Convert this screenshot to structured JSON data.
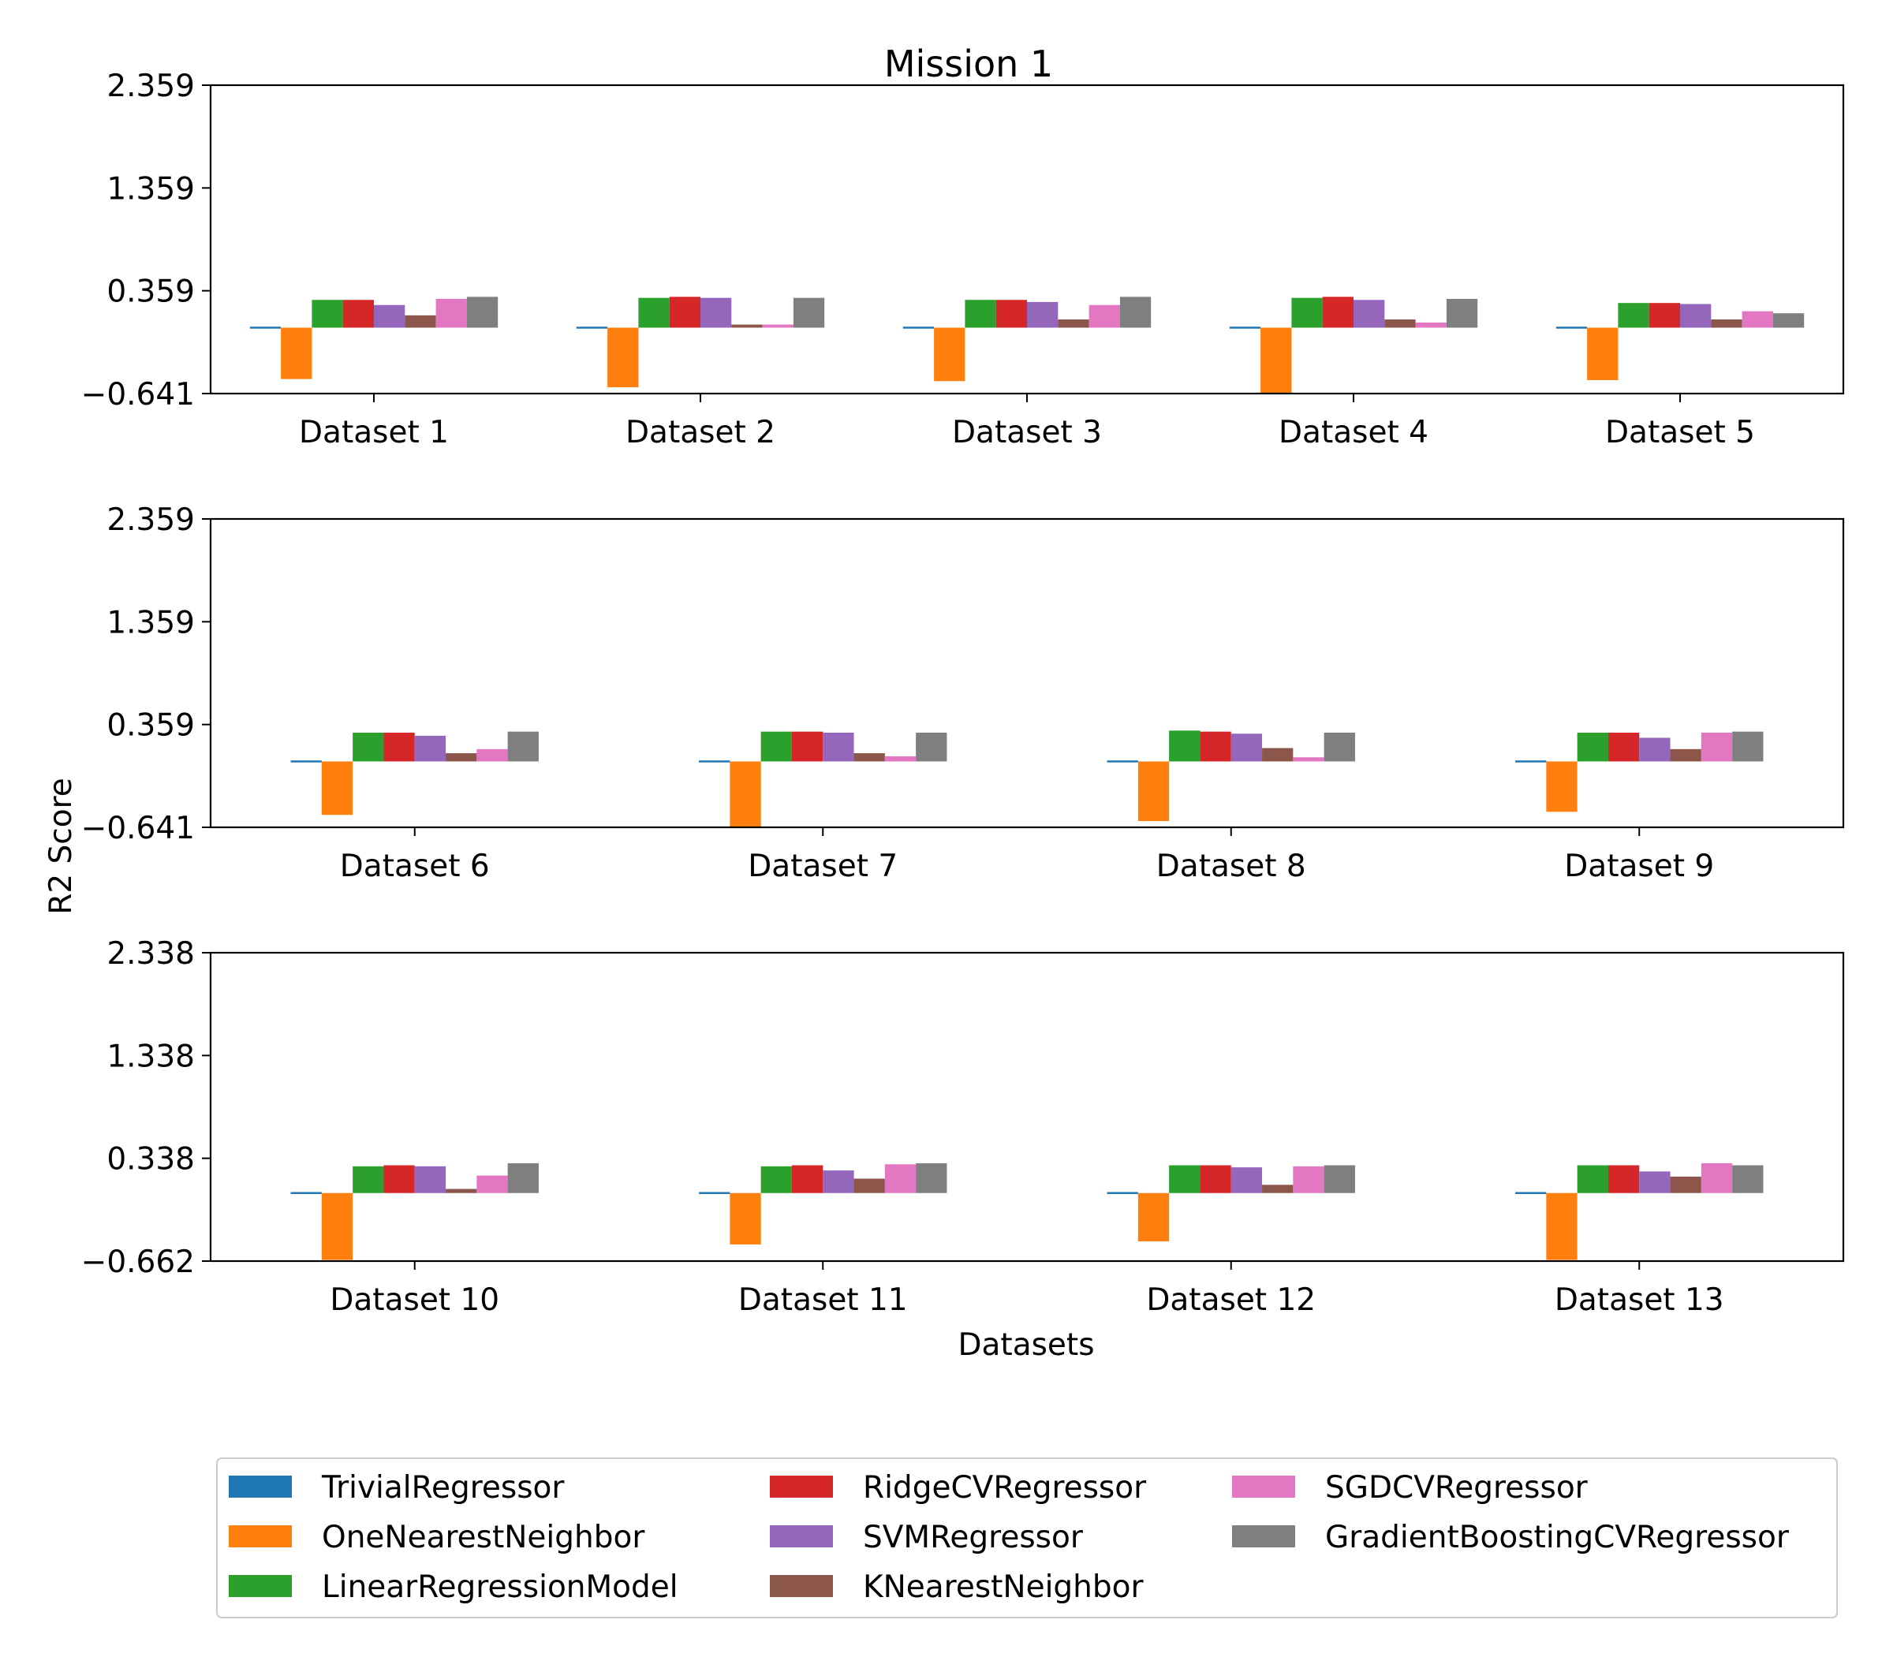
{
  "chart_data": {
    "type": "bar",
    "title": "Mission 1",
    "xlabel": "Datasets",
    "ylabel": "R2 Score",
    "series_names": [
      "TrivialRegressor",
      "OneNearestNeighbor",
      "LinearRegressionModel",
      "RidgeCVRegressor",
      "SVMRegressor",
      "KNearestNeighbor",
      "SGDCVRegressor",
      "GradientBoostingCVRegressor"
    ],
    "colors": [
      "#1f77b4",
      "#ff7f0e",
      "#2ca02c",
      "#d62728",
      "#9467bd",
      "#8c564b",
      "#e377c2",
      "#7f7f7f"
    ],
    "legend": {
      "placement": "bottom",
      "columns": 3
    },
    "grid": false,
    "panels": [
      {
        "ylim": [
          -0.641,
          2.359
        ],
        "yticks": [
          -0.641,
          0.359,
          1.359,
          2.359
        ],
        "ytick_labels": [
          "−0.641",
          "0.359",
          "1.359",
          "2.359"
        ],
        "categories": [
          "Dataset 1",
          "Dataset 2",
          "Dataset 3",
          "Dataset 4",
          "Dataset 5"
        ],
        "values": [
          [
            0.0,
            -0.5,
            0.27,
            0.27,
            0.22,
            0.12,
            0.28,
            0.3
          ],
          [
            0.0,
            -0.58,
            0.29,
            0.3,
            0.29,
            0.03,
            0.03,
            0.29
          ],
          [
            0.0,
            -0.52,
            0.27,
            0.27,
            0.25,
            0.08,
            0.22,
            0.3
          ],
          [
            0.0,
            -0.64,
            0.29,
            0.3,
            0.27,
            0.08,
            0.05,
            0.28
          ],
          [
            0.0,
            -0.51,
            0.24,
            0.24,
            0.23,
            0.08,
            0.16,
            0.14
          ]
        ]
      },
      {
        "ylim": [
          -0.641,
          2.359
        ],
        "yticks": [
          -0.641,
          0.359,
          1.359,
          2.359
        ],
        "ytick_labels": [
          "−0.641",
          "0.359",
          "1.359",
          "2.359"
        ],
        "categories": [
          "Dataset 6",
          "Dataset 7",
          "Dataset 8",
          "Dataset 9"
        ],
        "values": [
          [
            0.0,
            -0.52,
            0.28,
            0.28,
            0.25,
            0.08,
            0.12,
            0.29
          ],
          [
            0.0,
            -0.64,
            0.29,
            0.29,
            0.28,
            0.08,
            0.05,
            0.28
          ],
          [
            0.0,
            -0.58,
            0.3,
            0.29,
            0.27,
            0.13,
            0.04,
            0.28
          ],
          [
            0.0,
            -0.49,
            0.28,
            0.28,
            0.23,
            0.12,
            0.28,
            0.29
          ]
        ]
      },
      {
        "ylim": [
          -0.662,
          2.338
        ],
        "yticks": [
          -0.662,
          0.338,
          1.338,
          2.338
        ],
        "ytick_labels": [
          "−0.662",
          "0.338",
          "1.338",
          "2.338"
        ],
        "categories": [
          "Dataset 10",
          "Dataset 11",
          "Dataset 12",
          "Dataset 13"
        ],
        "values": [
          [
            0.0,
            -0.65,
            0.26,
            0.27,
            0.26,
            0.04,
            0.17,
            0.29
          ],
          [
            0.0,
            -0.5,
            0.26,
            0.27,
            0.22,
            0.14,
            0.28,
            0.29
          ],
          [
            0.0,
            -0.47,
            0.27,
            0.27,
            0.25,
            0.08,
            0.26,
            0.27
          ],
          [
            0.0,
            -0.65,
            0.27,
            0.27,
            0.21,
            0.16,
            0.29,
            0.27
          ]
        ]
      }
    ]
  }
}
